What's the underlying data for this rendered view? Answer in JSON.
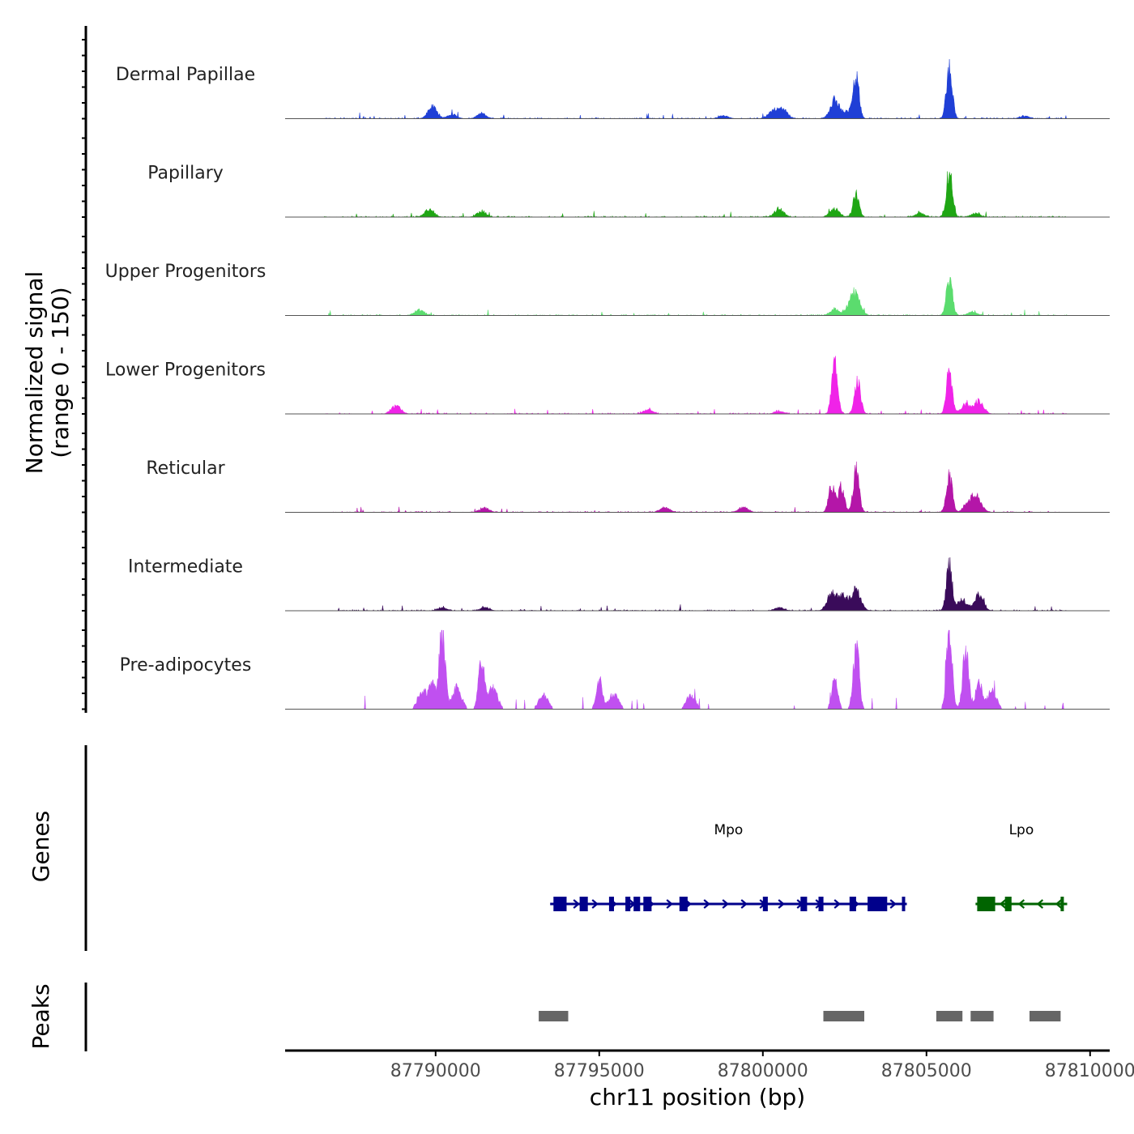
{
  "chart_data": {
    "type": "area",
    "title": "",
    "chromosome": "chr11",
    "xlabel": "chr11 position (bp)",
    "ylabel": "Normalized signal",
    "ylabel_range": "(range 0 - 150)",
    "ylim": [
      0,
      150
    ],
    "xlim": [
      87785400,
      87810600
    ],
    "x_ticks": [
      87790000,
      87795000,
      87800000,
      87805000,
      87810000
    ],
    "x_tick_labels": [
      "87790000",
      "87795000",
      "87800000",
      "87805000",
      "87810000"
    ],
    "series": [
      {
        "name": "Dermal Papillae",
        "color": "#1f3fd6",
        "peaks": [
          [
            87789900,
            22
          ],
          [
            87790500,
            8
          ],
          [
            87791400,
            10
          ],
          [
            87798800,
            6
          ],
          [
            87800300,
            14
          ],
          [
            87800600,
            18
          ],
          [
            87802200,
            35
          ],
          [
            87802650,
            14
          ],
          [
            87802850,
            76
          ],
          [
            87805700,
            98
          ],
          [
            87808000,
            5
          ]
        ]
      },
      {
        "name": "Papillary",
        "color": "#1fa614",
        "peaks": [
          [
            87789800,
            14
          ],
          [
            87791400,
            10
          ],
          [
            87800500,
            16
          ],
          [
            87802200,
            16
          ],
          [
            87802850,
            45
          ],
          [
            87804800,
            7
          ],
          [
            87805700,
            88
          ],
          [
            87806500,
            7
          ]
        ]
      },
      {
        "name": "Upper Progenitors",
        "color": "#5bdc6e",
        "peaks": [
          [
            87789500,
            10
          ],
          [
            87802200,
            12
          ],
          [
            87802650,
            14
          ],
          [
            87802850,
            38
          ],
          [
            87805700,
            74
          ],
          [
            87806400,
            7
          ]
        ]
      },
      {
        "name": "Lower Progenitors",
        "color": "#f023e8",
        "peaks": [
          [
            87788800,
            16
          ],
          [
            87796500,
            8
          ],
          [
            87800500,
            5
          ],
          [
            87802200,
            100
          ],
          [
            87802900,
            62
          ],
          [
            87805700,
            72
          ],
          [
            87806200,
            18
          ],
          [
            87806600,
            24
          ]
        ]
      },
      {
        "name": "Reticular",
        "color": "#b416a8",
        "peaks": [
          [
            87791500,
            8
          ],
          [
            87797000,
            9
          ],
          [
            87799400,
            10
          ],
          [
            87802100,
            50
          ],
          [
            87802400,
            48
          ],
          [
            87802850,
            78
          ],
          [
            87805700,
            68
          ],
          [
            87806300,
            20
          ],
          [
            87806550,
            25
          ]
        ]
      },
      {
        "name": "Intermediate",
        "color": "#3a0b5a",
        "peaks": [
          [
            87790200,
            6
          ],
          [
            87791500,
            6
          ],
          [
            87800500,
            6
          ],
          [
            87802100,
            32
          ],
          [
            87802450,
            26
          ],
          [
            87802850,
            40
          ],
          [
            87805700,
            84
          ],
          [
            87806100,
            20
          ],
          [
            87806600,
            28
          ]
        ]
      },
      {
        "name": "Pre-adipocytes",
        "color": "#c050f0",
        "peaks": [
          [
            87789600,
            35
          ],
          [
            87789900,
            45
          ],
          [
            87790200,
            150
          ],
          [
            87790650,
            40
          ],
          [
            87791400,
            90
          ],
          [
            87791750,
            40
          ],
          [
            87793300,
            28
          ],
          [
            87795000,
            55
          ],
          [
            87795450,
            30
          ],
          [
            87797800,
            25
          ],
          [
            87802200,
            60
          ],
          [
            87802850,
            115
          ],
          [
            87805700,
            140
          ],
          [
            87806200,
            115
          ],
          [
            87806600,
            55
          ],
          [
            87807000,
            35
          ]
        ]
      }
    ],
    "genes": [
      {
        "name": "Mpo",
        "color": "#00008b",
        "start": 87793500,
        "end": 87804400,
        "strand": "+",
        "exons": [
          [
            87793600,
            87794000
          ],
          [
            87794400,
            87794650
          ],
          [
            87795300,
            87795450
          ],
          [
            87795800,
            87795950
          ],
          [
            87796050,
            87796250
          ],
          [
            87796350,
            87796600
          ],
          [
            87797450,
            87797700
          ],
          [
            87800000,
            87800150
          ],
          [
            87801150,
            87801350
          ],
          [
            87801700,
            87801850
          ],
          [
            87802650,
            87802850
          ],
          [
            87803200,
            87803800
          ],
          [
            87804250,
            87804350
          ]
        ]
      },
      {
        "name": "Lpo",
        "color": "#006400",
        "start": 87806500,
        "end": 87809300,
        "strand": "-",
        "exons": [
          [
            87806550,
            87807100
          ],
          [
            87807400,
            87807600
          ],
          [
            87809100,
            87809200
          ]
        ]
      }
    ],
    "peaks_track": [
      [
        87793150,
        87794050
      ],
      [
        87801850,
        87803100
      ],
      [
        87805300,
        87806100
      ],
      [
        87806350,
        87807050
      ],
      [
        87808150,
        87809100
      ]
    ],
    "track_labels": {
      "genes": "Genes",
      "peaks": "Peaks"
    }
  }
}
